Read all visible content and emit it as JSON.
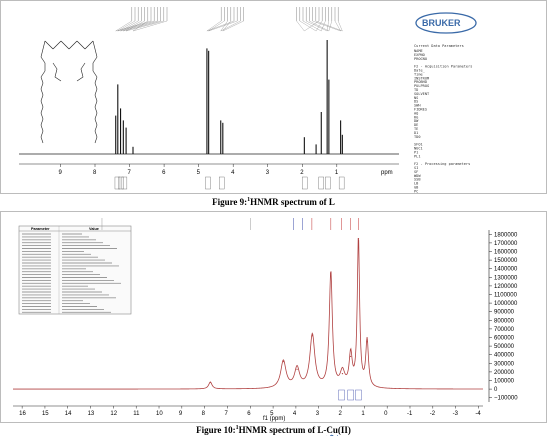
{
  "figure9": {
    "caption_label": "Figure 9:",
    "caption_sup": "1",
    "caption_text": "HNMR spectrum of L",
    "brand": "BRUKER",
    "params_title": "Current Data Parameters",
    "params_rows": [
      "NAME",
      "EXPNO",
      "PROCNO",
      "",
      "F2 - Acquisition Parameters",
      "Date_",
      "Time",
      "INSTRUM",
      "PROBHD",
      "PULPROG",
      "TD",
      "SOLVENT",
      "NS",
      "DS",
      "SWH",
      "FIDRES",
      "AQ",
      "RG",
      "DW",
      "DE",
      "TE",
      "D1",
      "TD0",
      "",
      "SFO1",
      "NUC1",
      "P1",
      "PL1",
      "",
      "F2 - Processing parameters",
      "SI",
      "SF",
      "WDW",
      "SSB",
      "LB",
      "GB",
      "PC"
    ],
    "x_unit": "ppm"
  },
  "figure10": {
    "caption_label": "Figure 10:",
    "caption_sup": "1",
    "caption_text": "HNMR spectrum of L-",
    "caption_metal": "Cu",
    "caption_tail": "(II)",
    "table_headers": [
      "Parameter",
      "Value"
    ],
    "table_row_count": 28,
    "xlabel": "f1 (ppm)"
  },
  "chart_data": [
    {
      "type": "line",
      "title": "",
      "xlabel": "",
      "x_unit": "ppm",
      "x_reversed": true,
      "xlim": [
        -0.8,
        10.2
      ],
      "x_ticks": [
        9,
        8,
        7,
        6,
        5,
        4,
        3,
        2,
        1
      ],
      "peaks": [
        {
          "x": 7.4,
          "y": 0.32
        },
        {
          "x": 7.34,
          "y": 0.58
        },
        {
          "x": 7.26,
          "y": 0.38
        },
        {
          "x": 7.18,
          "y": 0.28
        },
        {
          "x": 7.1,
          "y": 0.22
        },
        {
          "x": 6.9,
          "y": 0.06
        },
        {
          "x": 4.76,
          "y": 0.88
        },
        {
          "x": 4.71,
          "y": 0.86
        },
        {
          "x": 4.36,
          "y": 0.28
        },
        {
          "x": 4.3,
          "y": 0.26
        },
        {
          "x": 1.94,
          "y": 0.14
        },
        {
          "x": 1.6,
          "y": 0.08
        },
        {
          "x": 1.45,
          "y": 0.35
        },
        {
          "x": 1.28,
          "y": 0.95
        },
        {
          "x": 1.23,
          "y": 0.62
        },
        {
          "x": 0.89,
          "y": 0.28
        },
        {
          "x": 0.84,
          "y": 0.16
        }
      ],
      "grid": false
    },
    {
      "type": "line",
      "title": "",
      "xlabel": "f1 (ppm)",
      "x_reversed": true,
      "xlim": [
        -4.2,
        16.4
      ],
      "x_ticks": [
        16,
        15,
        14,
        13,
        12,
        11,
        10,
        9,
        8,
        7,
        6,
        5,
        4,
        3,
        2,
        1,
        0,
        -1,
        -2,
        -3,
        -4
      ],
      "ylim": [
        -150000,
        1850000
      ],
      "y_ticks": [
        -100000,
        0,
        100000,
        200000,
        300000,
        400000,
        500000,
        600000,
        700000,
        800000,
        900000,
        1000000,
        1100000,
        1200000,
        1300000,
        1400000,
        1500000,
        1600000,
        1700000,
        1800000
      ],
      "y_tick_labels": [
        "−100000",
        "0",
        "100000",
        "200000",
        "300000",
        "400000",
        "500000",
        "600000",
        "700000",
        "800000",
        "900000",
        "1000000",
        "1100000",
        "1200000",
        "1300000",
        "1400000",
        "1500000",
        "1600000",
        "1700000",
        "1800000"
      ],
      "peaks": [
        {
          "x": 7.75,
          "y": 80000,
          "w": 0.09
        },
        {
          "x": 4.55,
          "y": 320000,
          "w": 0.14
        },
        {
          "x": 3.95,
          "y": 230000,
          "w": 0.13
        },
        {
          "x": 3.28,
          "y": 620000,
          "w": 0.13
        },
        {
          "x": 2.47,
          "y": 1350000,
          "w": 0.08
        },
        {
          "x": 1.96,
          "y": 180000,
          "w": 0.12
        },
        {
          "x": 1.6,
          "y": 380000,
          "w": 0.08
        },
        {
          "x": 1.26,
          "y": 1750000,
          "w": 0.06
        },
        {
          "x": 0.88,
          "y": 550000,
          "w": 0.07
        }
      ],
      "line_color": "#b04040",
      "grid": false
    }
  ]
}
